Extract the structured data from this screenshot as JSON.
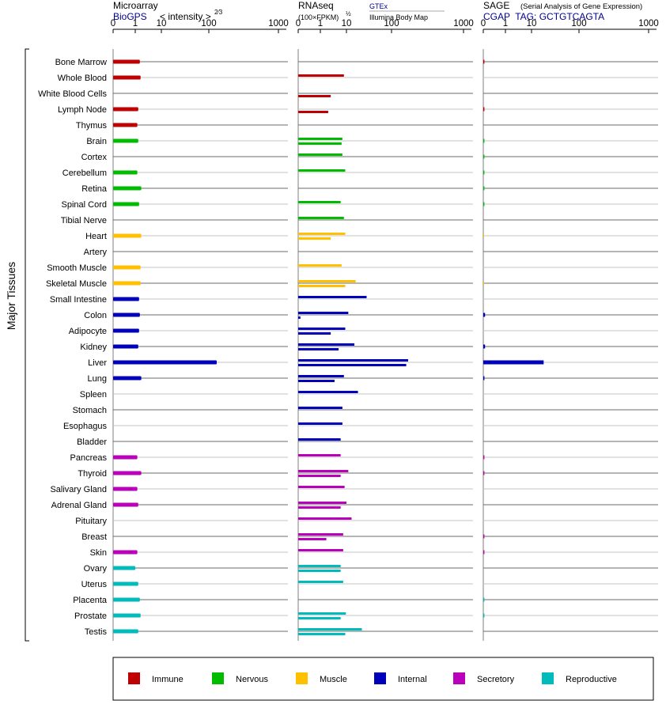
{
  "panels": {
    "microarray": {
      "title": "Microarray",
      "source": "BioGPS",
      "scale_prefix": "< intensity >",
      "scale_power": "2⁄3"
    },
    "rnaseq": {
      "title": "RNAseq",
      "unit_prefix": "(100×FPKM)",
      "unit_power": "½",
      "source_a": "GTEx",
      "source_b": "Illumina Body Map"
    },
    "sage": {
      "title": "SAGE",
      "subtitle": "(Serial Analysis of Gene Expression)",
      "tag": "CGAP  TAG: GCTGTCAGTA"
    }
  },
  "y_group_label": "Major Tissues",
  "chart_data": {
    "type": "bar",
    "orientation": "horizontal",
    "x_scale": "custom (0, 1, 10, 100, 1000)",
    "x_ticks": [
      "0",
      "1",
      "10",
      "100",
      "1000"
    ],
    "xlim": [
      0,
      1000
    ],
    "categories": [
      "Bone Marrow",
      "Whole Blood",
      "White Blood Cells",
      "Lymph Node",
      "Thymus",
      "Brain",
      "Cortex",
      "Cerebellum",
      "Retina",
      "Spinal Cord",
      "Tibial Nerve",
      "Heart",
      "Artery",
      "Smooth Muscle",
      "Skeletal Muscle",
      "Small Intestine",
      "Colon",
      "Adipocyte",
      "Kidney",
      "Liver",
      "Lung",
      "Spleen",
      "Stomach",
      "Esophagus",
      "Bladder",
      "Pancreas",
      "Thyroid",
      "Salivary Gland",
      "Adrenal Gland",
      "Pituitary",
      "Breast",
      "Skin",
      "Ovary",
      "Uterus",
      "Placenta",
      "Prostate",
      "Testis"
    ],
    "groups": [
      "Immune",
      "Immune",
      "Immune",
      "Immune",
      "Immune",
      "Nervous",
      "Nervous",
      "Nervous",
      "Nervous",
      "Nervous",
      "Nervous",
      "Muscle",
      "Muscle",
      "Muscle",
      "Muscle",
      "Internal",
      "Internal",
      "Internal",
      "Internal",
      "Internal",
      "Internal",
      "Internal",
      "Internal",
      "Internal",
      "Internal",
      "Secretory",
      "Secretory",
      "Secretory",
      "Secretory",
      "Secretory",
      "Secretory",
      "Secretory",
      "Reproductive",
      "Reproductive",
      "Reproductive",
      "Reproductive",
      "Reproductive"
    ],
    "legend": [
      {
        "name": "Immune",
        "color": "#c00000"
      },
      {
        "name": "Nervous",
        "color": "#00bb00"
      },
      {
        "name": "Muscle",
        "color": "#ffc000"
      },
      {
        "name": "Internal",
        "color": "#0000bb"
      },
      {
        "name": "Secretory",
        "color": "#bb00bb"
      },
      {
        "name": "Reproductive",
        "color": "#00bbbb"
      }
    ],
    "legend_position": "bottom",
    "series": [
      {
        "panel": "microarray",
        "values": [
          1.5,
          1.6,
          null,
          1.3,
          1.2,
          1.3,
          null,
          1.2,
          1.7,
          1.4,
          null,
          1.7,
          null,
          1.6,
          1.6,
          1.4,
          1.5,
          1.4,
          1.3,
          130,
          1.7,
          null,
          null,
          null,
          null,
          1.2,
          1.7,
          1.2,
          1.3,
          null,
          null,
          1.2,
          1.0,
          1.3,
          1.5,
          1.6,
          1.3
        ]
      },
      {
        "panel": "rnaseq_gtex",
        "values": [
          null,
          8,
          null,
          null,
          null,
          7,
          7,
          9,
          null,
          6,
          8,
          9,
          null,
          6.5,
          16,
          28,
          11,
          9,
          15,
          170,
          8,
          18,
          7,
          7,
          6,
          6,
          11,
          8.5,
          10,
          13,
          7.5,
          7.5,
          6,
          7.5,
          null,
          9.5,
          22
        ]
      },
      {
        "panel": "rnaseq_illumina",
        "values": [
          null,
          null,
          2.5,
          2,
          null,
          6.5,
          null,
          null,
          null,
          null,
          null,
          2.5,
          null,
          null,
          9,
          null,
          0.1,
          2.5,
          5,
          160,
          3.5,
          null,
          null,
          null,
          null,
          null,
          6,
          null,
          6,
          null,
          1.7,
          null,
          6,
          null,
          null,
          6,
          9
        ]
      },
      {
        "panel": "sage",
        "values": [
          0.05,
          null,
          null,
          0.05,
          null,
          0.05,
          0.05,
          0.05,
          0.05,
          0.05,
          null,
          0.03,
          null,
          null,
          0.03,
          null,
          0.08,
          null,
          0.08,
          18,
          0.05,
          null,
          null,
          null,
          null,
          0.05,
          0.05,
          null,
          null,
          null,
          0.05,
          0.05,
          null,
          null,
          0.05,
          0.05,
          null
        ]
      }
    ]
  }
}
